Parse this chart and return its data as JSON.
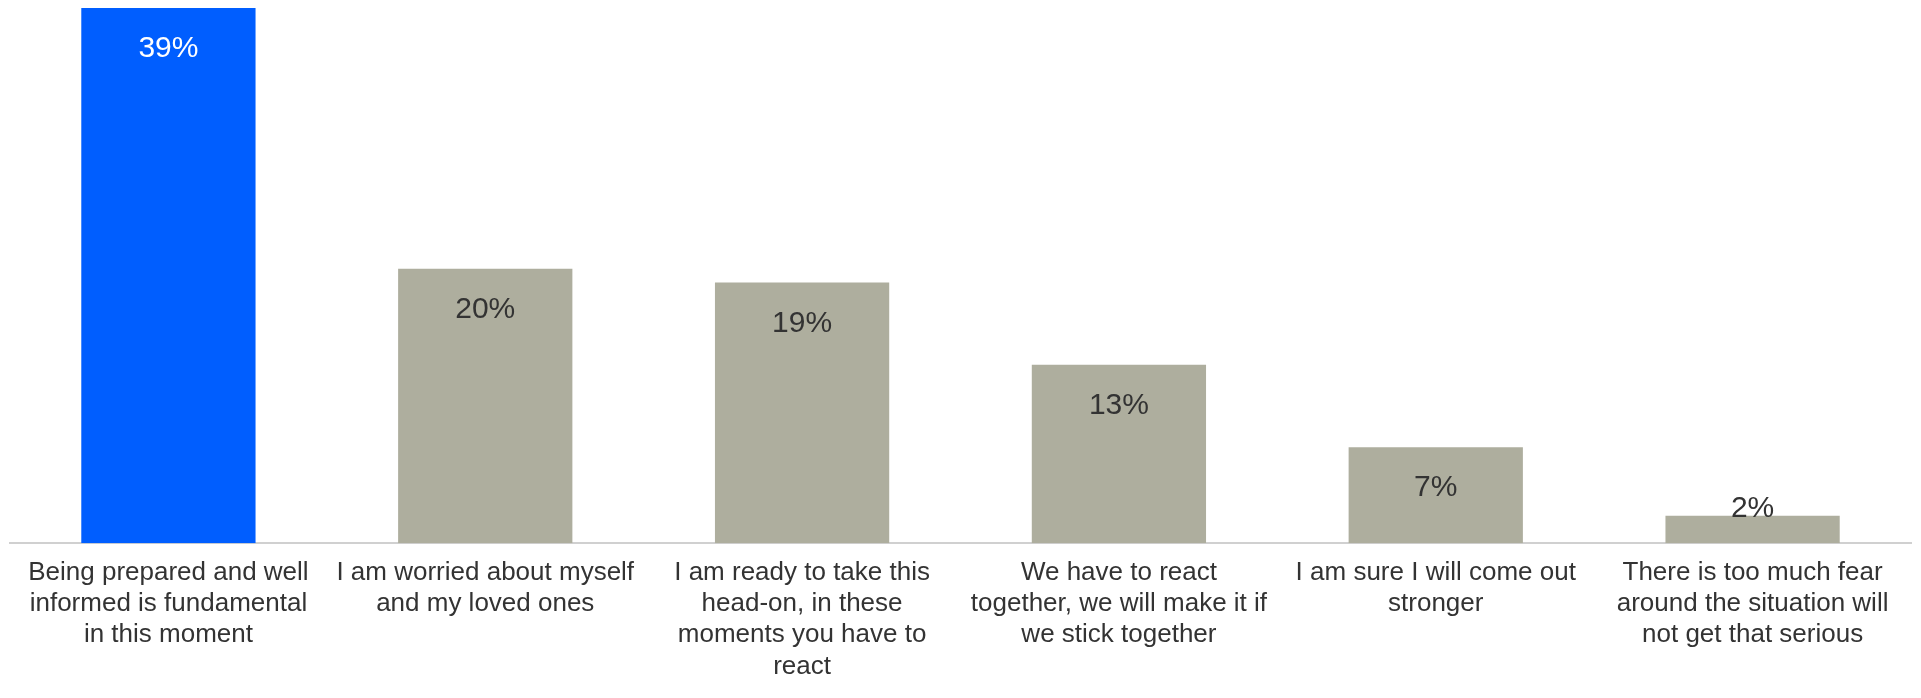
{
  "chart_data": {
    "type": "bar",
    "categories": [
      "Being prepared and well informed is fundamental in this moment",
      "I am worried about myself and my loved ones",
      "I am ready to take this head-on, in these moments you have to react",
      "We have to react together, we will make it if we stick together",
      "I am sure I will come out stronger",
      "There is too much fear around the situation will not get that serious"
    ],
    "values": [
      39,
      20,
      19,
      13,
      7,
      2
    ],
    "value_labels": [
      "39%",
      "20%",
      "19%",
      "13%",
      "7%",
      "2%"
    ],
    "colors": [
      "#005eff",
      "#aeae9e",
      "#aeae9e",
      "#aeae9e",
      "#aeae9e",
      "#aeae9e"
    ],
    "grid": false,
    "legend": false
  }
}
